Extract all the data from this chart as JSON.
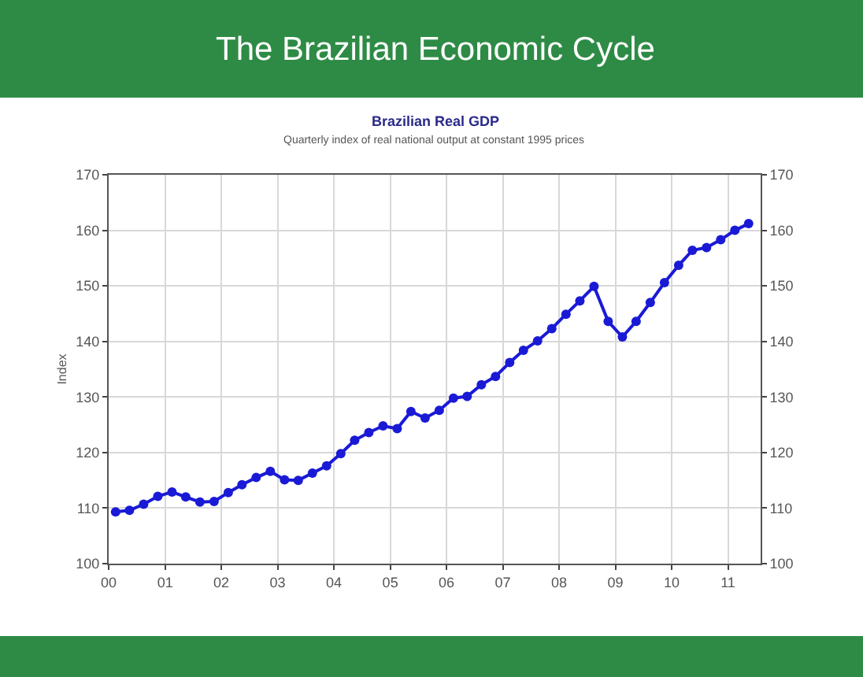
{
  "chart_data": {
    "type": "line",
    "title": "The Brazilian Economic Cycle",
    "subtitle": "Brazilian Real GDP",
    "annotations": [
      "Quarterly index of real national output at constant 1995 prices"
    ],
    "ylabel": "Index",
    "x": [
      "2000-02-15",
      "2000-05-15",
      "2000-08-15",
      "2000-11-15",
      "2001-02-15",
      "2001-05-15",
      "2001-08-15",
      "2001-11-15",
      "2002-02-15",
      "2002-05-15",
      "2002-08-15",
      "2002-11-15",
      "2003-02-15",
      "2003-05-15",
      "2003-08-15",
      "2003-11-15",
      "2004-02-15",
      "2004-05-15",
      "2004-08-15",
      "2004-11-15",
      "2005-02-15",
      "2005-05-15",
      "2005-08-15",
      "2005-11-15",
      "2006-02-15",
      "2006-05-15",
      "2006-08-15",
      "2006-11-15",
      "2007-02-15",
      "2007-05-15",
      "2007-08-15",
      "2007-11-15",
      "2008-02-15",
      "2008-05-15",
      "2008-08-15",
      "2008-11-15",
      "2009-02-15",
      "2009-05-15",
      "2009-08-15",
      "2009-11-15",
      "2010-02-15",
      "2010-05-15",
      "2010-08-15",
      "2010-11-15",
      "2011-02-15",
      "2011-05-15"
    ],
    "series": [
      {
        "color": "#1a1ad6",
        "values": [
          109.3,
          109.6,
          110.7,
          112.1,
          112.9,
          112.0,
          111.1,
          111.2,
          112.8,
          114.2,
          115.5,
          116.6,
          115.1,
          115.0,
          116.3,
          117.6,
          119.8,
          122.2,
          123.6,
          124.8,
          124.3,
          127.4,
          126.2,
          127.6,
          129.8,
          130.1,
          132.2,
          133.7,
          136.2,
          138.4,
          140.1,
          142.3,
          144.9,
          147.3,
          149.9,
          143.6,
          140.8,
          143.6,
          147.0,
          150.6,
          153.7,
          156.4,
          156.9,
          158.3,
          160.0,
          161.2
        ]
      }
    ],
    "marker": "circle",
    "line_style": "solid",
    "grid": true,
    "xlim": [
      "2000-01-01",
      "2011-08-01"
    ],
    "xticks": [
      {
        "value": "2000",
        "label": "00"
      },
      {
        "value": "2001",
        "label": "01"
      },
      {
        "value": "2002",
        "label": "02"
      },
      {
        "value": "2003",
        "label": "03"
      },
      {
        "value": "2004",
        "label": "04"
      },
      {
        "value": "2005",
        "label": "05"
      },
      {
        "value": "2006",
        "label": "06"
      },
      {
        "value": "2007",
        "label": "07"
      },
      {
        "value": "2008",
        "label": "08"
      },
      {
        "value": "2009",
        "label": "09"
      },
      {
        "value": "2010",
        "label": "10"
      },
      {
        "value": "2011",
        "label": "11"
      }
    ],
    "ylim": [
      100,
      170
    ],
    "yticks": [
      100,
      110,
      120,
      130,
      140,
      150,
      160,
      170
    ],
    "y2lim": [
      100,
      170
    ],
    "y2ticks": [
      100,
      110,
      120,
      130,
      140,
      150,
      160,
      170
    ]
  }
}
